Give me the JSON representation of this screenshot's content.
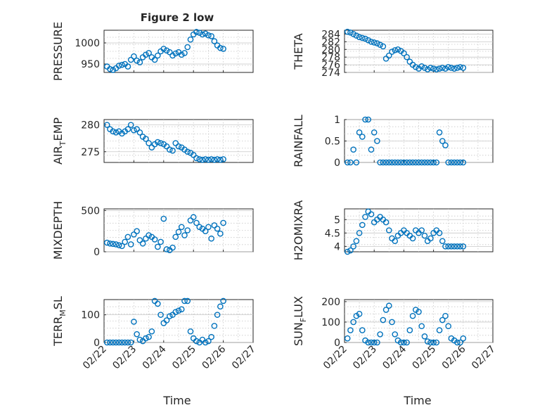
{
  "figure": {
    "title": "Figure 2 low",
    "xlabel": "Time",
    "marker_color": "#0072BD",
    "grid": "on"
  },
  "chart_data": [
    {
      "type": "scatter",
      "ylabel": "PRESSURE",
      "ylim": [
        930,
        1030
      ],
      "yticks": [
        950,
        1000
      ],
      "xlim": [
        0,
        5
      ],
      "x": [
        0.1,
        0.2,
        0.3,
        0.4,
        0.5,
        0.6,
        0.7,
        0.8,
        0.9,
        1.0,
        1.1,
        1.2,
        1.3,
        1.4,
        1.5,
        1.6,
        1.7,
        1.8,
        1.9,
        2.0,
        2.1,
        2.2,
        2.3,
        2.4,
        2.5,
        2.6,
        2.7,
        2.8,
        2.9,
        3.0,
        3.1,
        3.2,
        3.3,
        3.4,
        3.5,
        3.6,
        3.7,
        3.8,
        3.9,
        4.0
      ],
      "values": [
        944,
        938,
        936,
        940,
        946,
        948,
        950,
        944,
        960,
        968,
        958,
        954,
        966,
        972,
        976,
        966,
        960,
        970,
        980,
        986,
        982,
        978,
        970,
        975,
        978,
        972,
        976,
        990,
        1008,
        1020,
        1026,
        1024,
        1020,
        1022,
        1018,
        1016,
        1004,
        994,
        988,
        986
      ]
    },
    {
      "type": "scatter",
      "ylabel": "THETA",
      "ylim": [
        274,
        285
      ],
      "yticks": [
        274,
        276,
        278,
        280,
        282,
        284
      ],
      "xlim": [
        0,
        5
      ],
      "x": [
        0.1,
        0.2,
        0.3,
        0.4,
        0.5,
        0.6,
        0.7,
        0.8,
        0.9,
        1.0,
        1.1,
        1.2,
        1.3,
        1.4,
        1.5,
        1.6,
        1.7,
        1.8,
        1.9,
        2.0,
        2.1,
        2.2,
        2.3,
        2.4,
        2.5,
        2.6,
        2.7,
        2.8,
        2.9,
        3.0,
        3.1,
        3.2,
        3.3,
        3.4,
        3.5,
        3.6,
        3.7,
        3.8,
        3.9,
        4.0
      ],
      "values": [
        284.6,
        284.4,
        284.0,
        283.6,
        283.2,
        283.0,
        282.8,
        282.4,
        282.0,
        281.8,
        281.6,
        281.2,
        280.8,
        277.6,
        278.4,
        279.4,
        279.8,
        280.0,
        279.6,
        279.0,
        278.0,
        276.8,
        276.0,
        275.4,
        275.0,
        275.6,
        275.2,
        274.8,
        275.2,
        275.0,
        274.8,
        275.0,
        275.2,
        275.0,
        275.4,
        275.2,
        275.0,
        275.2,
        275.4,
        275.2
      ]
    },
    {
      "type": "scatter",
      "ylabel": "AIR_TEMP",
      "ylim": [
        273,
        281
      ],
      "yticks": [
        275,
        280
      ],
      "xlim": [
        0,
        5
      ],
      "x": [
        0.1,
        0.2,
        0.3,
        0.4,
        0.5,
        0.6,
        0.7,
        0.8,
        0.9,
        1.0,
        1.1,
        1.2,
        1.3,
        1.4,
        1.5,
        1.6,
        1.7,
        1.8,
        1.9,
        2.0,
        2.1,
        2.2,
        2.3,
        2.4,
        2.5,
        2.6,
        2.7,
        2.8,
        2.9,
        3.0,
        3.1,
        3.2,
        3.3,
        3.4,
        3.5,
        3.6,
        3.7,
        3.8,
        3.9,
        4.0
      ],
      "values": [
        280.0,
        279.2,
        278.8,
        278.6,
        278.8,
        278.4,
        278.8,
        279.2,
        280.0,
        279.0,
        279.2,
        278.6,
        277.8,
        277.4,
        276.6,
        275.8,
        276.4,
        276.8,
        276.6,
        276.4,
        276.0,
        275.4,
        275.2,
        276.6,
        276.0,
        275.8,
        275.4,
        275.0,
        274.8,
        274.4,
        273.8,
        273.6,
        273.5,
        273.6,
        273.5,
        273.6,
        273.5,
        273.6,
        273.5,
        273.6
      ]
    },
    {
      "type": "scatter",
      "ylabel": "RAINFALL",
      "ylim": [
        0,
        1
      ],
      "yticks": [
        0,
        0.5,
        1
      ],
      "xlim": [
        0,
        5
      ],
      "x": [
        0.1,
        0.2,
        0.3,
        0.4,
        0.5,
        0.6,
        0.7,
        0.8,
        0.9,
        1.0,
        1.1,
        1.2,
        1.3,
        1.4,
        1.5,
        1.6,
        1.7,
        1.8,
        1.9,
        2.0,
        2.1,
        2.2,
        2.3,
        2.4,
        2.5,
        2.6,
        2.7,
        2.8,
        2.9,
        3.0,
        3.1,
        3.2,
        3.3,
        3.4,
        3.5,
        3.6,
        3.7,
        3.8,
        3.9,
        4.0
      ],
      "values": [
        0,
        0,
        0.3,
        0,
        0.7,
        0.6,
        1.0,
        1.0,
        0.3,
        0.7,
        0.5,
        0,
        0,
        0,
        0,
        0,
        0,
        0,
        0,
        0,
        0,
        0,
        0,
        0,
        0,
        0,
        0,
        0,
        0,
        0,
        0,
        0.7,
        0.5,
        0.4,
        0,
        0,
        0,
        0,
        0,
        0
      ]
    },
    {
      "type": "scatter",
      "ylabel": "MIXDEPTH",
      "ylim": [
        0,
        520
      ],
      "yticks": [
        0,
        500
      ],
      "xlim": [
        0,
        5
      ],
      "x": [
        0.1,
        0.2,
        0.3,
        0.4,
        0.5,
        0.6,
        0.7,
        0.8,
        0.9,
        1.0,
        1.1,
        1.2,
        1.3,
        1.4,
        1.5,
        1.6,
        1.7,
        1.8,
        1.9,
        2.0,
        2.1,
        2.2,
        2.3,
        2.4,
        2.5,
        2.6,
        2.7,
        2.8,
        2.9,
        3.0,
        3.1,
        3.2,
        3.3,
        3.4,
        3.5,
        3.6,
        3.7,
        3.8,
        3.9,
        4.0
      ],
      "values": [
        110,
        100,
        95,
        90,
        80,
        70,
        120,
        180,
        90,
        210,
        250,
        140,
        100,
        160,
        200,
        180,
        150,
        60,
        120,
        400,
        30,
        20,
        50,
        180,
        240,
        300,
        200,
        260,
        380,
        420,
        350,
        300,
        280,
        250,
        300,
        160,
        320,
        280,
        220,
        350
      ]
    },
    {
      "type": "scatter",
      "ylabel": "H2OMIXRA",
      "ylim": [
        3.8,
        5.4
      ],
      "yticks": [
        4,
        4.5,
        5
      ],
      "xlim": [
        0,
        5
      ],
      "x": [
        0.1,
        0.2,
        0.3,
        0.4,
        0.5,
        0.6,
        0.7,
        0.8,
        0.9,
        1.0,
        1.1,
        1.2,
        1.3,
        1.4,
        1.5,
        1.6,
        1.7,
        1.8,
        1.9,
        2.0,
        2.1,
        2.2,
        2.3,
        2.4,
        2.5,
        2.6,
        2.7,
        2.8,
        2.9,
        3.0,
        3.1,
        3.2,
        3.3,
        3.4,
        3.5,
        3.6,
        3.7,
        3.8,
        3.9,
        4.0
      ],
      "values": [
        3.8,
        3.85,
        4.0,
        4.2,
        4.5,
        4.8,
        5.1,
        5.3,
        5.2,
        4.9,
        5.0,
        5.1,
        5.0,
        4.9,
        4.6,
        4.3,
        4.2,
        4.4,
        4.5,
        4.6,
        4.5,
        4.4,
        4.3,
        4.6,
        4.5,
        4.6,
        4.4,
        4.2,
        4.3,
        4.5,
        4.6,
        4.5,
        4.2,
        4.0,
        4.0,
        4.0,
        4.0,
        4.0,
        4.0,
        4.0
      ]
    },
    {
      "type": "scatter",
      "ylabel": "TERR_MSL",
      "ylim": [
        0,
        155
      ],
      "yticks": [
        0,
        100
      ],
      "xlim": [
        0,
        5
      ],
      "x": [
        0.1,
        0.2,
        0.3,
        0.4,
        0.5,
        0.6,
        0.7,
        0.8,
        0.9,
        1.0,
        1.1,
        1.2,
        1.3,
        1.4,
        1.5,
        1.6,
        1.7,
        1.8,
        1.9,
        2.0,
        2.1,
        2.2,
        2.3,
        2.4,
        2.5,
        2.6,
        2.7,
        2.8,
        2.9,
        3.0,
        3.1,
        3.2,
        3.3,
        3.4,
        3.5,
        3.6,
        3.7,
        3.8,
        3.9,
        4.0
      ],
      "values": [
        0,
        0,
        0,
        0,
        0,
        0,
        0,
        0,
        0,
        75,
        30,
        10,
        5,
        15,
        20,
        40,
        150,
        140,
        100,
        70,
        80,
        95,
        100,
        110,
        115,
        120,
        150,
        150,
        40,
        15,
        5,
        0,
        10,
        0,
        5,
        20,
        60,
        100,
        130,
        150
      ]
    },
    {
      "type": "scatter",
      "ylabel": "SUN_FLUX",
      "ylim": [
        0,
        210
      ],
      "yticks": [
        0,
        100,
        200
      ],
      "xlim": [
        0,
        5
      ],
      "x": [
        0.1,
        0.2,
        0.3,
        0.4,
        0.5,
        0.6,
        0.7,
        0.8,
        0.9,
        1.0,
        1.1,
        1.2,
        1.3,
        1.4,
        1.5,
        1.6,
        1.7,
        1.8,
        1.9,
        2.0,
        2.1,
        2.2,
        2.3,
        2.4,
        2.5,
        2.6,
        2.7,
        2.8,
        2.9,
        3.0,
        3.1,
        3.2,
        3.3,
        3.4,
        3.5,
        3.6,
        3.7,
        3.8,
        3.9,
        4.0
      ],
      "values": [
        20,
        60,
        100,
        130,
        140,
        60,
        10,
        0,
        0,
        0,
        0,
        40,
        110,
        160,
        180,
        100,
        40,
        10,
        0,
        0,
        0,
        60,
        130,
        160,
        150,
        80,
        30,
        5,
        0,
        0,
        0,
        60,
        110,
        130,
        80,
        20,
        10,
        0,
        0,
        20
      ]
    }
  ],
  "x_tick_labels": [
    "02/22",
    "02/23",
    "02/24",
    "02/25",
    "02/26",
    "02/27"
  ]
}
